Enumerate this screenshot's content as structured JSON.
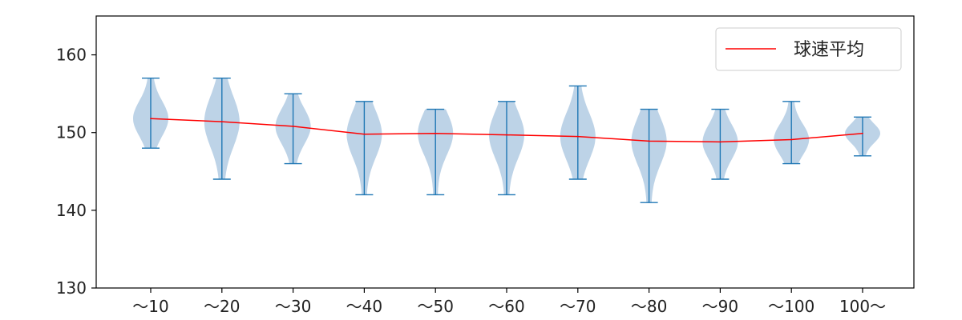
{
  "chart_data": {
    "type": "violin",
    "title": "",
    "xlabel": "",
    "ylabel": "",
    "ylim": [
      130,
      165
    ],
    "y_ticks": [
      130,
      140,
      150,
      160
    ],
    "grid": false,
    "legend_position": "top-right",
    "categories": [
      "〜10",
      "〜20",
      "〜30",
      "〜40",
      "〜50",
      "〜60",
      "〜70",
      "〜80",
      "〜90",
      "〜100",
      "100〜"
    ],
    "distributions": [
      {
        "min": 148,
        "max": 157,
        "mean": 151.8
      },
      {
        "min": 144,
        "max": 157,
        "mean": 151.4
      },
      {
        "min": 146,
        "max": 155,
        "mean": 150.8
      },
      {
        "min": 142,
        "max": 154,
        "mean": 149.8
      },
      {
        "min": 142,
        "max": 153,
        "mean": 149.9
      },
      {
        "min": 142,
        "max": 154,
        "mean": 149.7
      },
      {
        "min": 144,
        "max": 156,
        "mean": 149.5
      },
      {
        "min": 141,
        "max": 153,
        "mean": 148.9
      },
      {
        "min": 144,
        "max": 153,
        "mean": 148.8
      },
      {
        "min": 146,
        "max": 154,
        "mean": 149.1
      },
      {
        "min": 147,
        "max": 152,
        "mean": 149.9
      }
    ],
    "series": [
      {
        "name": "球速平均",
        "color": "#ff0000",
        "values": [
          151.8,
          151.4,
          150.8,
          149.8,
          149.9,
          149.7,
          149.5,
          148.9,
          148.8,
          149.1,
          149.9
        ]
      }
    ],
    "colors": {
      "violin_fill": "#b9d1e6",
      "violin_line": "#1f77b4",
      "mean_line": "#ff0000",
      "axis": "#000000"
    }
  }
}
